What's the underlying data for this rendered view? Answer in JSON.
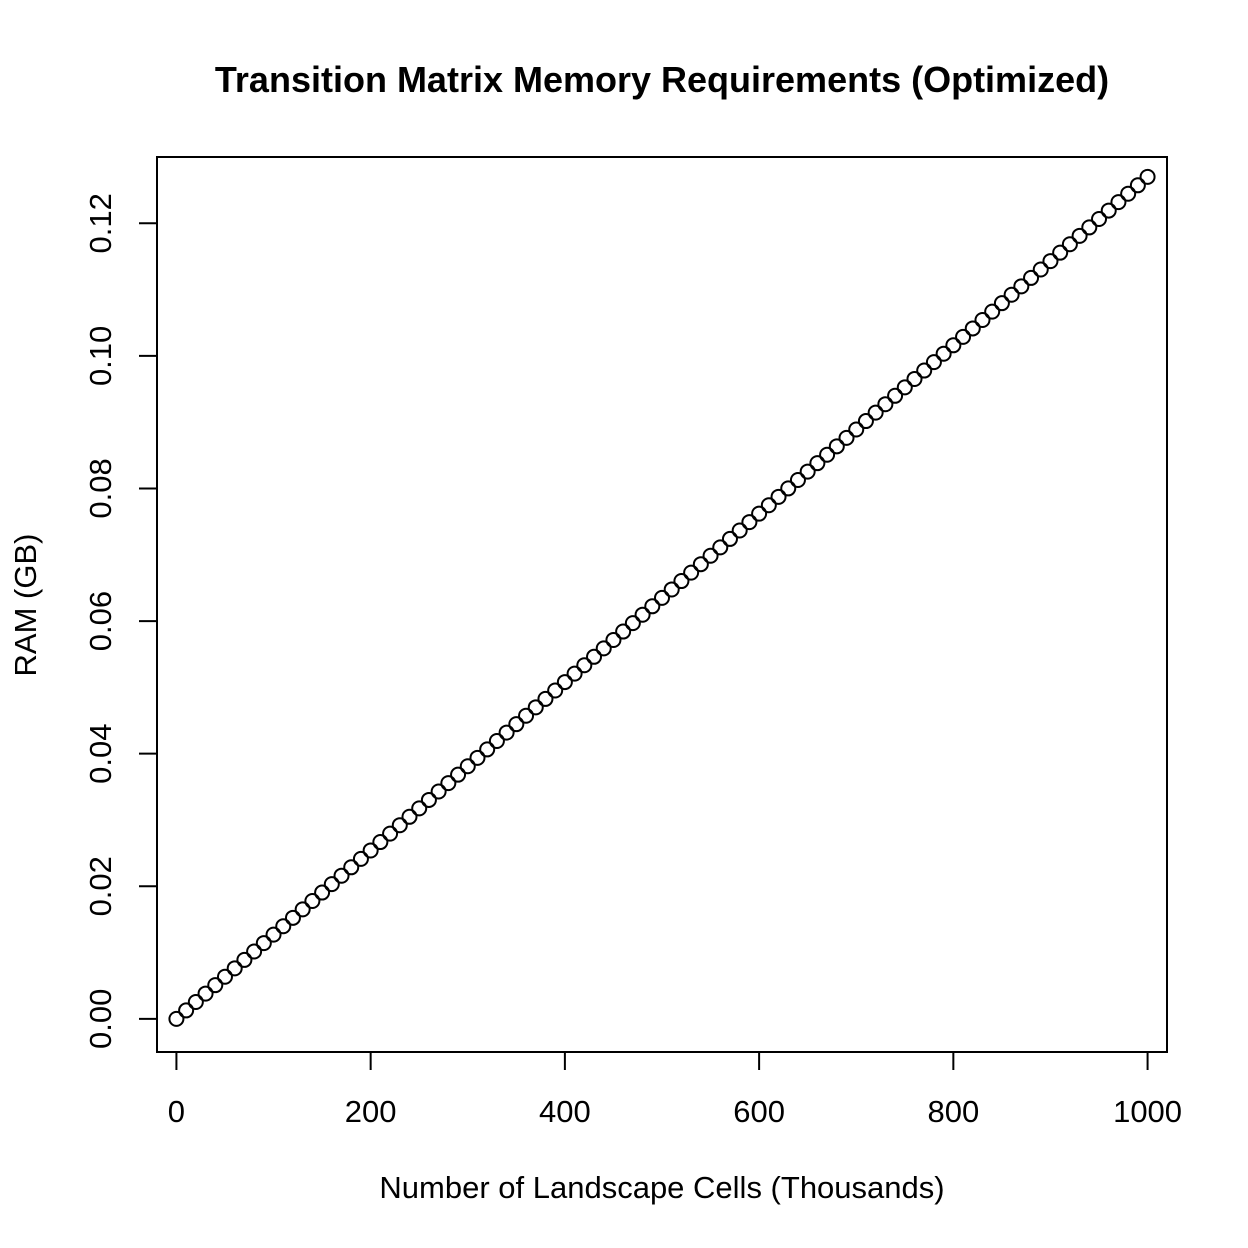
{
  "chart_data": {
    "type": "scatter",
    "title": "Transition Matrix Memory Requirements (Optimized)",
    "xlabel": "Number of Landscape Cells (Thousands)",
    "ylabel": "RAM (GB)",
    "xlim": [
      -20,
      1020
    ],
    "ylim": [
      -0.005,
      0.13
    ],
    "x_ticks": [
      0,
      200,
      400,
      600,
      800,
      1000
    ],
    "x_tick_labels": [
      "0",
      "200",
      "400",
      "600",
      "800",
      "1000"
    ],
    "y_ticks": [
      0.0,
      0.02,
      0.04,
      0.06,
      0.08,
      0.1,
      0.12
    ],
    "y_tick_labels": [
      "0.00",
      "0.02",
      "0.04",
      "0.06",
      "0.08",
      "0.10",
      "0.12"
    ],
    "grid": false,
    "legend": "none",
    "marker": "open-circle",
    "colors": {
      "marker": "#000000",
      "axes": "#000000"
    },
    "x": [
      0,
      10,
      20,
      30,
      40,
      50,
      60,
      70,
      80,
      90,
      100,
      110,
      120,
      130,
      140,
      150,
      160,
      170,
      180,
      190,
      200,
      210,
      220,
      230,
      240,
      250,
      260,
      270,
      280,
      290,
      300,
      310,
      320,
      330,
      340,
      350,
      360,
      370,
      380,
      390,
      400,
      410,
      420,
      430,
      440,
      450,
      460,
      470,
      480,
      490,
      500,
      510,
      520,
      530,
      540,
      550,
      560,
      570,
      580,
      590,
      600,
      610,
      620,
      630,
      640,
      650,
      660,
      670,
      680,
      690,
      700,
      710,
      720,
      730,
      740,
      750,
      760,
      770,
      780,
      790,
      800,
      810,
      820,
      830,
      840,
      850,
      860,
      870,
      880,
      890,
      900,
      910,
      920,
      930,
      940,
      950,
      960,
      970,
      980,
      990,
      1000
    ],
    "y": [
      0.0,
      0.00127,
      0.00254,
      0.00381,
      0.00508,
      0.00635,
      0.00762,
      0.00889,
      0.01016,
      0.01143,
      0.0127,
      0.01397,
      0.01524,
      0.01651,
      0.01778,
      0.01905,
      0.02032,
      0.02159,
      0.02286,
      0.02413,
      0.0254,
      0.02667,
      0.02794,
      0.02921,
      0.03048,
      0.03175,
      0.03302,
      0.03429,
      0.03556,
      0.03683,
      0.0381,
      0.03937,
      0.04064,
      0.04191,
      0.04318,
      0.04445,
      0.04572,
      0.04699,
      0.04826,
      0.04953,
      0.0508,
      0.05207,
      0.05334,
      0.05461,
      0.05588,
      0.05715,
      0.05842,
      0.05969,
      0.06096,
      0.06223,
      0.0635,
      0.06477,
      0.06604,
      0.06731,
      0.06858,
      0.06985,
      0.07112,
      0.07239,
      0.07366,
      0.07493,
      0.0762,
      0.07747,
      0.07874,
      0.08001,
      0.08128,
      0.08255,
      0.08382,
      0.08509,
      0.08636,
      0.08763,
      0.0889,
      0.09017,
      0.09144,
      0.09271,
      0.09398,
      0.09525,
      0.09652,
      0.09779,
      0.09906,
      0.10033,
      0.1016,
      0.10287,
      0.10414,
      0.10541,
      0.10668,
      0.10795,
      0.10922,
      0.11049,
      0.11176,
      0.11303,
      0.1143,
      0.11557,
      0.11684,
      0.11811,
      0.11938,
      0.12065,
      0.12192,
      0.12319,
      0.12446,
      0.12573,
      0.127
    ]
  }
}
